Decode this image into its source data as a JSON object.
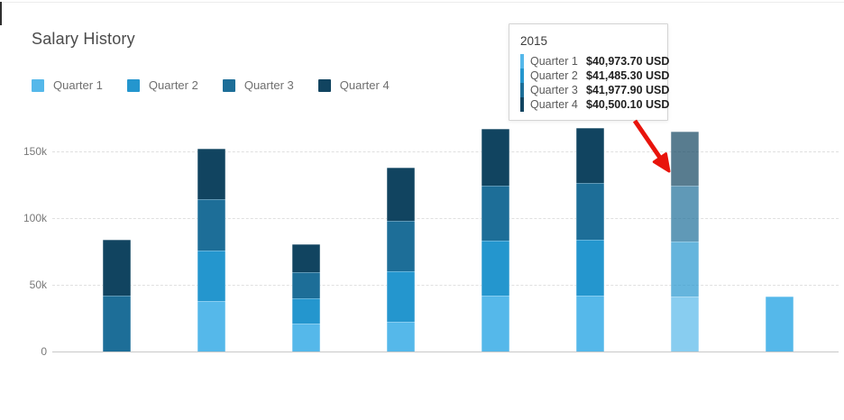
{
  "header": {
    "title": "Salary History"
  },
  "legend": {
    "items": [
      {
        "label": "Quarter 1",
        "color": "#55b8ea"
      },
      {
        "label": "Quarter 2",
        "color": "#2496ce"
      },
      {
        "label": "Quarter 3",
        "color": "#1d6e98"
      },
      {
        "label": "Quarter 4",
        "color": "#114460"
      }
    ]
  },
  "chart_data": {
    "type": "bar",
    "stacked": true,
    "title": "Salary History",
    "x_labels_visible": false,
    "categories": [
      "",
      "",
      "",
      "",
      "",
      "",
      "",
      ""
    ],
    "series": [
      {
        "name": "Quarter 1",
        "color": "#55b8ea",
        "hover_color": "#87cef1",
        "values": [
          0,
          37500,
          20700,
          22400,
          41700,
          41900,
          40973.7,
          41000
        ]
      },
      {
        "name": "Quarter 2",
        "color": "#2496ce",
        "hover_color": "#62b3dc",
        "values": [
          0,
          38100,
          19200,
          37500,
          41300,
          41700,
          41485.3,
          0
        ]
      },
      {
        "name": "Quarter 3",
        "color": "#1d6e98",
        "hover_color": "#5c99b2",
        "values": [
          41900,
          38600,
          19300,
          38100,
          41000,
          42400,
          41977.9,
          0
        ]
      },
      {
        "name": "Quarter 4",
        "color": "#114460",
        "hover_color": "#587a8d",
        "values": [
          41800,
          37700,
          21100,
          39500,
          42700,
          41100,
          40500.1,
          0
        ]
      }
    ],
    "y_ticks": [
      {
        "label": "150k",
        "value": 150000
      },
      {
        "label": "100k",
        "value": 100000
      },
      {
        "label": "50k",
        "value": 50000
      },
      {
        "label": "0",
        "value": 0
      }
    ],
    "ylim": [
      0,
      168000
    ],
    "grid": "horizontal-dashed",
    "legend_position": "top-left",
    "highlighted_bar_index": 6,
    "highlight_opacity": 0.7
  },
  "tooltip": {
    "title": "2015",
    "rows": [
      {
        "label": "Quarter 1",
        "value": "$40,973.70 USD",
        "color": "#55b8ea"
      },
      {
        "label": "Quarter 2",
        "value": "$41,485.30 USD",
        "color": "#2496ce"
      },
      {
        "label": "Quarter 3",
        "value": "$41,977.90 USD",
        "color": "#1d6e98"
      },
      {
        "label": "Quarter 4",
        "value": "$40,500.10 USD",
        "color": "#114460"
      }
    ]
  },
  "colors": {
    "arrow": "#e8140c",
    "grid": "#e0e0e0",
    "baseline": "#c8c8c8",
    "title_text": "#4b4b4b",
    "tick_text": "#787878"
  }
}
